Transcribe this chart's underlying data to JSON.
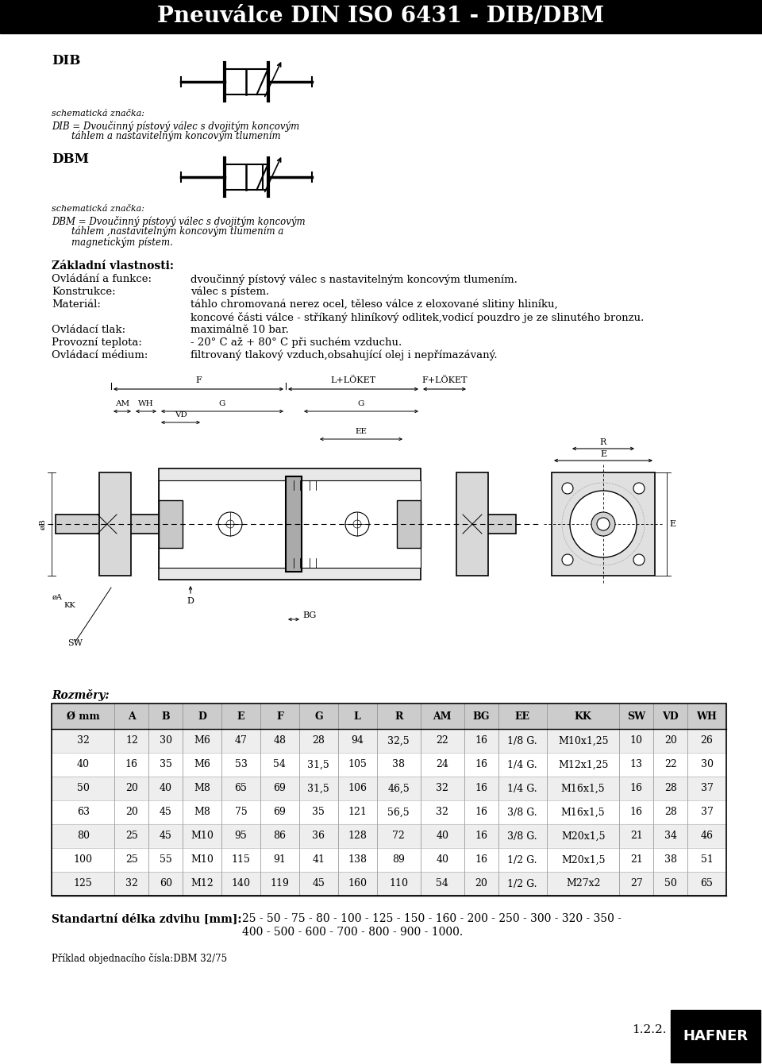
{
  "title": "Pneuválce DIN ISO 6431 - DIB/DBM",
  "title_bg": "#000000",
  "title_color": "#ffffff",
  "title_fontsize": 20,
  "page_bg": "#ffffff",
  "dib_label": "DIB",
  "dbm_label": "DBM",
  "schematic_label": "schematická značka:",
  "dib_desc_line1": "DIB = Dvoučinný pístový válec s dvojitým koncovým",
  "dib_desc_line2": "táhlem a nastavitelným koncovým tlumením",
  "dbm_desc_line1": "DBM = Dvoučinný pístový válec s dvojitým koncovým",
  "dbm_desc_line2": "táhlem ,nastavitelným koncovým tlumením a",
  "dbm_desc_line3": "magnetickým pístem.",
  "props_title": "Základní vlastnosti:",
  "props": [
    [
      "Ovládání a funkce:",
      "dvoučinný pístový válec s nastavitelným koncovým tlumením."
    ],
    [
      "Konstrukce:",
      "válec s pístem."
    ],
    [
      "Materiál:",
      "táhlo chromovaná nerez ocel, těleso válce z eloxované slitiny hliníku,"
    ],
    [
      "",
      "koncové části válce - stříkaný hliníkový odlitek,vodicí pouzdro je ze slinutého bronzu."
    ],
    [
      "Ovládací tlak:",
      "maximálně 10 bar."
    ],
    [
      "Provozní teplota:",
      "- 20° C až + 80° C při suchém vzduchu."
    ],
    [
      "Ovládací médium:",
      "filtrovaný tlakový vzduch,obsahující olej i nepřímazávaný."
    ]
  ],
  "rozmery_title": "Rozměry:",
  "table_header": [
    "Ø mm",
    "A",
    "B",
    "D",
    "E",
    "F",
    "G",
    "L",
    "R",
    "AM",
    "BG",
    "EE",
    "KK",
    "SW",
    "VD",
    "WH"
  ],
  "table_data": [
    [
      "32",
      "12",
      "30",
      "M6",
      "47",
      "48",
      "28",
      "94",
      "32,5",
      "22",
      "16",
      "1/8 G.",
      "M10x1,25",
      "10",
      "20",
      "26"
    ],
    [
      "40",
      "16",
      "35",
      "M6",
      "53",
      "54",
      "31,5",
      "105",
      "38",
      "24",
      "16",
      "1/4 G.",
      "M12x1,25",
      "13",
      "22",
      "30"
    ],
    [
      "50",
      "20",
      "40",
      "M8",
      "65",
      "69",
      "31,5",
      "106",
      "46,5",
      "32",
      "16",
      "1/4 G.",
      "M16x1,5",
      "16",
      "28",
      "37"
    ],
    [
      "63",
      "20",
      "45",
      "M8",
      "75",
      "69",
      "35",
      "121",
      "56,5",
      "32",
      "16",
      "3/8 G.",
      "M16x1,5",
      "16",
      "28",
      "37"
    ],
    [
      "80",
      "25",
      "45",
      "M10",
      "95",
      "86",
      "36",
      "128",
      "72",
      "40",
      "16",
      "3/8 G.",
      "M20x1,5",
      "21",
      "34",
      "46"
    ],
    [
      "100",
      "25",
      "55",
      "M10",
      "115",
      "91",
      "41",
      "138",
      "89",
      "40",
      "16",
      "1/2 G.",
      "M20x1,5",
      "21",
      "38",
      "51"
    ],
    [
      "125",
      "32",
      "60",
      "M12",
      "140",
      "119",
      "45",
      "160",
      "110",
      "54",
      "20",
      "1/2 G.",
      "M27x2",
      "27",
      "50",
      "65"
    ]
  ],
  "table_header_bg": "#cccccc",
  "table_row_bg1": "#eeeeee",
  "table_row_bg2": "#ffffff",
  "zdvih_label": "Standartní délka zdvihu [mm]:",
  "zdvih_line1": "25 - 50 - 75 - 80 - 100 - 125 - 150 - 160 - 200 - 250 - 300 - 320 - 350 -",
  "zdvih_line2": "400 - 500 - 600 - 700 - 800 - 900 - 1000.",
  "priklad_label": "Příklad objednacího čísla:DBM 32/75",
  "page_num": "1.2.2.",
  "hafner_bg": "#000000",
  "hafner_text": "HAFNER",
  "hafner_color": "#ffffff"
}
